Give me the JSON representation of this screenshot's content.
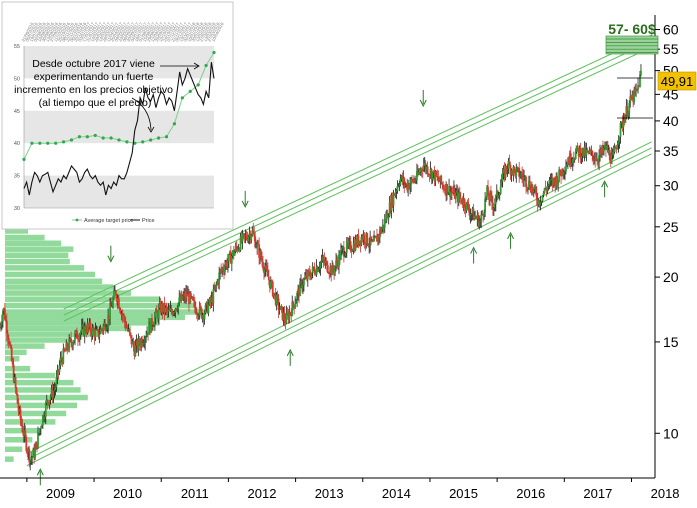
{
  "chart_data": [
    {
      "type": "line",
      "scale": "log",
      "grid": false,
      "x_ticks": [
        "2009",
        "2010",
        "2011",
        "2012",
        "2013",
        "2014",
        "2015",
        "2016",
        "2017",
        "2018"
      ],
      "y_ticks": [
        10,
        15,
        20,
        25,
        30,
        35,
        40,
        45,
        50,
        55,
        60
      ],
      "ylim": [
        8.2,
        64
      ],
      "xlim": [
        2008.6,
        2018.35
      ],
      "series": [
        {
          "values": {
            "x": [
              2008.6,
              2008.65,
              2008.72,
              2008.8,
              2008.88,
              2008.95,
              2009.05,
              2009.12,
              2009.2,
              2009.3,
              2009.42,
              2009.5,
              2009.62,
              2009.75,
              2009.9,
              2010.05,
              2010.2,
              2010.32,
              2010.45,
              2010.6,
              2010.72,
              2010.85,
              2011.0,
              2011.12,
              2011.25,
              2011.38,
              2011.5,
              2011.62,
              2011.75,
              2011.88,
              2012.05,
              2012.2,
              2012.35,
              2012.5,
              2012.62,
              2012.75,
              2012.85,
              2012.95,
              2013.1,
              2013.25,
              2013.4,
              2013.55,
              2013.7,
              2013.85,
              2014.0,
              2014.15,
              2014.3,
              2014.45,
              2014.55,
              2014.65,
              2014.8,
              2014.9,
              2015.0,
              2015.1,
              2015.2,
              2015.35,
              2015.5,
              2015.62,
              2015.75,
              2015.85,
              2015.95,
              2016.05,
              2016.15,
              2016.25,
              2016.35,
              2016.5,
              2016.62,
              2016.75,
              2016.9,
              2017.05,
              2017.2,
              2017.35,
              2017.5,
              2017.62,
              2017.72,
              2017.82,
              2017.9,
              2018.0,
              2018.08,
              2018.15
            ],
            "y": [
              16,
              17.5,
              15.5,
              13,
              11,
              10,
              8.9,
              9.2,
              10.3,
              11.5,
              12.2,
              13.8,
              14.8,
              15.5,
              16,
              15.5,
              16.5,
              18.8,
              16.5,
              14.5,
              15.2,
              16.2,
              17.5,
              17,
              17.8,
              18.5,
              17.5,
              17,
              18,
              20.5,
              22,
              23.5,
              24.5,
              21.5,
              19.5,
              17.5,
              16.5,
              17.5,
              19.5,
              20.5,
              21.5,
              20.5,
              22.5,
              23,
              24,
              23,
              25,
              28.5,
              31,
              30,
              31,
              33,
              32,
              31,
              30,
              29,
              28,
              26.5,
              25.5,
              29,
              27.5,
              30,
              33,
              32,
              31.5,
              30,
              28,
              30,
              31,
              33.5,
              35,
              34.5,
              34,
              35.5,
              33.5,
              38,
              41,
              44,
              45.5,
              49.9
            ]
          }
        }
      ],
      "channel_upper_start": {
        "x": 2009.55,
        "y": 16.9
      },
      "channel_upper_end": {
        "x": 2018.3,
        "y": 57
      },
      "channel_lower_start": {
        "x": 2009.0,
        "y": 8.9
      },
      "channel_lower_end": {
        "x": 2018.3,
        "y": 35.5
      },
      "support_arrows_up": [
        {
          "x": 2009.2,
          "y": 8.3
        },
        {
          "x": 2012.92,
          "y": 14.1
        },
        {
          "x": 2015.65,
          "y": 22.2
        },
        {
          "x": 2016.2,
          "y": 23.7
        },
        {
          "x": 2017.6,
          "y": 29.8
        }
      ],
      "resistance_arrows_down": [
        {
          "x": 2010.25,
          "y": 21.8
        },
        {
          "x": 2012.25,
          "y": 27.8
        },
        {
          "x": 2014.9,
          "y": 43.5
        }
      ],
      "last_price_label": "49,91",
      "target_label": "57- 60$",
      "volume_profile": [
        {
          "price": 25.2,
          "vol": 0.15
        },
        {
          "price": 24.5,
          "vol": 0.32
        },
        {
          "price": 23.8,
          "vol": 0.55
        },
        {
          "price": 23.2,
          "vol": 0.78
        },
        {
          "price": 22.6,
          "vol": 0.95
        },
        {
          "price": 22.0,
          "vol": 0.88
        },
        {
          "price": 21.4,
          "vol": 0.9
        },
        {
          "price": 20.8,
          "vol": 1.1
        },
        {
          "price": 20.2,
          "vol": 1.25
        },
        {
          "price": 19.6,
          "vol": 1.35
        },
        {
          "price": 19.1,
          "vol": 1.5
        },
        {
          "price": 18.6,
          "vol": 1.75
        },
        {
          "price": 18.1,
          "vol": 2.15
        },
        {
          "price": 17.6,
          "vol": 2.65
        },
        {
          "price": 17.1,
          "vol": 2.8
        },
        {
          "price": 16.7,
          "vol": 2.5
        },
        {
          "price": 16.3,
          "vol": 2.15
        },
        {
          "price": 15.9,
          "vol": 1.75
        },
        {
          "price": 15.5,
          "vol": 1.3
        },
        {
          "price": 15.1,
          "vol": 0.9
        },
        {
          "price": 14.7,
          "vol": 0.55
        },
        {
          "price": 14.3,
          "vol": 0.3
        },
        {
          "price": 13.9,
          "vol": 0.2
        },
        {
          "price": 13.3,
          "vol": 0.35
        },
        {
          "price": 12.9,
          "vol": 0.7
        },
        {
          "price": 12.5,
          "vol": 0.95
        },
        {
          "price": 12.1,
          "vol": 1.05
        },
        {
          "price": 11.7,
          "vol": 1.15
        },
        {
          "price": 11.3,
          "vol": 1.0
        },
        {
          "price": 10.9,
          "vol": 0.85
        },
        {
          "price": 10.5,
          "vol": 0.7
        },
        {
          "price": 10.1,
          "vol": 0.5
        },
        {
          "price": 9.7,
          "vol": 0.38
        },
        {
          "price": 9.3,
          "vol": 0.24
        },
        {
          "price": 8.9,
          "vol": 0.12
        }
      ]
    },
    {
      "type": "line",
      "x_ticks": [
        "21/06/2016",
        "05/07/2016",
        "19/07/2016",
        "02/08/2016",
        "16/08/2016",
        "30/08/2016",
        "13/09/2016",
        "27/09/2016",
        "11/10/2016",
        "25/10/2016",
        "08/11/2016",
        "22/11/2016",
        "06/12/2016",
        "20/12/2016",
        "03/01/2017",
        "17/01/2017",
        "31/01/2017",
        "14/02/2017",
        "28/02/2017",
        "14/03/2017",
        "28/03/2017",
        "11/04/2017",
        "25/04/2017",
        "09/05/2017",
        "23/05/2017",
        "06/06/2017",
        "20/06/2017",
        "04/07/2017",
        "18/07/2017",
        "01/08/2017",
        "15/08/2017",
        "29/08/2017",
        "12/09/2017",
        "26/09/2017",
        "10/10/2017",
        "24/10/2017",
        "07/11/2017",
        "21/11/2017",
        "05/12/2017",
        "19/12/2017",
        "02/01/2018",
        "16/01/2018",
        "30/01/2018",
        "13/02/2018",
        "27/02/2018",
        "13/03/2018",
        "27/03/2018",
        "10/04/2018"
      ],
      "y_ticks": [
        30,
        35,
        40,
        45,
        50,
        55
      ],
      "ylim": [
        30,
        55
      ],
      "xlim": [
        0,
        36
      ],
      "legend": [
        "Average target price",
        "Price"
      ],
      "annotation": "Desde octubre 2017 viene experimentando un fuerte incremento en los precios objetivo (al tiempo que el precio)",
      "series": [
        {
          "name": "Average target price",
          "x": [
            0,
            1.5,
            3,
            4.5,
            6,
            7.5,
            9,
            10.5,
            12,
            13.5,
            15,
            16.5,
            18,
            19.5,
            21,
            22.5,
            24,
            25.5,
            27,
            28.5,
            30,
            31.5,
            33,
            34.5,
            36
          ],
          "values": [
            37.5,
            40,
            40,
            40,
            40,
            40.2,
            40.5,
            41,
            41,
            41.2,
            40.8,
            40.8,
            40.5,
            40.2,
            40,
            40.2,
            40.5,
            40.8,
            41,
            43,
            47,
            48,
            49,
            52,
            54
          ]
        },
        {
          "name": "Price",
          "x": [
            0,
            0.5,
            1,
            1.5,
            2,
            2.5,
            3,
            3.5,
            4,
            4.5,
            5,
            5.5,
            6,
            6.5,
            7,
            7.5,
            8,
            8.5,
            9,
            9.5,
            10,
            10.5,
            11,
            11.5,
            12,
            12.5,
            13,
            13.5,
            14,
            14.5,
            15,
            15.5,
            16,
            16.5,
            17,
            17.5,
            18,
            18.5,
            19,
            19.5,
            20,
            20.5,
            21,
            21.5,
            22,
            22.5,
            23,
            23.5,
            24,
            24.5,
            25,
            25.5,
            26,
            26.5,
            27,
            27.5,
            28,
            28.5,
            29,
            29.5,
            30,
            30.5,
            31,
            31.5,
            32,
            32.5,
            33,
            33.5,
            34,
            34.5,
            35,
            35.5,
            36
          ],
          "values": [
            33,
            34,
            32,
            34,
            35.5,
            35,
            34,
            35,
            35.2,
            35.5,
            34,
            32.5,
            33.5,
            34.5,
            34,
            35,
            34.5,
            35.5,
            36.5,
            36,
            35.5,
            34,
            34.5,
            35.5,
            36,
            35,
            34.5,
            35,
            34,
            33.5,
            34,
            32,
            33.5,
            33,
            34,
            33.5,
            35,
            34.5,
            34.5,
            35.5,
            37,
            38.5,
            42,
            43.5,
            47,
            46,
            48.5,
            47,
            46.5,
            47.5,
            45.5,
            47,
            48,
            47.5,
            46,
            47,
            46.5,
            45,
            48,
            51,
            49,
            50,
            51.5,
            50.5,
            49.5,
            48.5,
            47.5,
            47,
            46,
            48,
            47,
            52.5,
            50
          ]
        }
      ]
    }
  ]
}
